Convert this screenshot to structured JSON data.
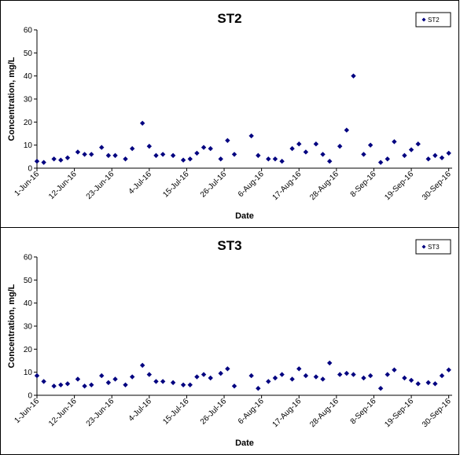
{
  "chart_data": [
    {
      "type": "scatter",
      "title": "ST2",
      "xlabel": "Date",
      "ylabel": "Concentration, mg/L",
      "ylim": [
        0,
        60
      ],
      "yticks": [
        "0",
        "10",
        "20",
        "30",
        "40",
        "50",
        "60"
      ],
      "xlim": [
        "2016-06-01",
        "2016-10-01"
      ],
      "xticks": [
        "1-Jun-16",
        "12-Jun-16",
        "23-Jun-16",
        "4-Jul-16",
        "15-Jul-16",
        "26-Jul-16",
        "6-Aug-16",
        "17-Aug-16",
        "28-Aug-16",
        "8-Sep-16",
        "19-Sep-16",
        "30-Sep-16"
      ],
      "grid": false,
      "legend": {
        "position": "top-right",
        "entries": [
          "ST2"
        ]
      },
      "series": [
        {
          "name": "ST2",
          "color": "#000080",
          "x": [
            "2016-06-01",
            "2016-06-03",
            "2016-06-06",
            "2016-06-08",
            "2016-06-10",
            "2016-06-13",
            "2016-06-15",
            "2016-06-17",
            "2016-06-20",
            "2016-06-22",
            "2016-06-24",
            "2016-06-27",
            "2016-06-29",
            "2016-07-02",
            "2016-07-04",
            "2016-07-06",
            "2016-07-08",
            "2016-07-11",
            "2016-07-14",
            "2016-07-16",
            "2016-07-18",
            "2016-07-20",
            "2016-07-22",
            "2016-07-25",
            "2016-07-27",
            "2016-07-29",
            "2016-08-03",
            "2016-08-05",
            "2016-08-08",
            "2016-08-10",
            "2016-08-12",
            "2016-08-15",
            "2016-08-17",
            "2016-08-19",
            "2016-08-22",
            "2016-08-24",
            "2016-08-26",
            "2016-08-29",
            "2016-08-31",
            "2016-09-02",
            "2016-09-05",
            "2016-09-07",
            "2016-09-10",
            "2016-09-12",
            "2016-09-14",
            "2016-09-17",
            "2016-09-19",
            "2016-09-21",
            "2016-09-24",
            "2016-09-26",
            "2016-09-28",
            "2016-09-30"
          ],
          "y": [
            3,
            2.5,
            4,
            3.5,
            4.5,
            7,
            6,
            6,
            9,
            5.5,
            5.5,
            4,
            8.5,
            19.5,
            9.5,
            5.5,
            6,
            5.5,
            3.5,
            4,
            6.5,
            9,
            8.5,
            4,
            12,
            6,
            14,
            5.5,
            4,
            4,
            3,
            8.5,
            10.5,
            7,
            10.5,
            6,
            3,
            9.5,
            16.5,
            40,
            6,
            10,
            2.5,
            4,
            11.5,
            5.5,
            8,
            10.5,
            4,
            5.5,
            4.5,
            6.5
          ]
        }
      ]
    },
    {
      "type": "scatter",
      "title": "ST3",
      "xlabel": "Date",
      "ylabel": "Concentration, mg/L",
      "ylim": [
        0,
        60
      ],
      "yticks": [
        "0",
        "10",
        "20",
        "30",
        "40",
        "50",
        "60"
      ],
      "xlim": [
        "2016-06-01",
        "2016-10-01"
      ],
      "xticks": [
        "1-Jun-16",
        "12-Jun-16",
        "23-Jun-16",
        "4-Jul-16",
        "15-Jul-16",
        "26-Jul-16",
        "6-Aug-16",
        "17-Aug-16",
        "28-Aug-16",
        "8-Sep-16",
        "19-Sep-16",
        "30-Sep-16"
      ],
      "grid": false,
      "legend": {
        "position": "top-right",
        "entries": [
          "ST3"
        ]
      },
      "series": [
        {
          "name": "ST3",
          "color": "#000080",
          "x": [
            "2016-06-01",
            "2016-06-03",
            "2016-06-06",
            "2016-06-08",
            "2016-06-10",
            "2016-06-13",
            "2016-06-15",
            "2016-06-17",
            "2016-06-20",
            "2016-06-22",
            "2016-06-24",
            "2016-06-27",
            "2016-06-29",
            "2016-07-02",
            "2016-07-04",
            "2016-07-06",
            "2016-07-08",
            "2016-07-11",
            "2016-07-14",
            "2016-07-16",
            "2016-07-18",
            "2016-07-20",
            "2016-07-22",
            "2016-07-25",
            "2016-07-27",
            "2016-07-29",
            "2016-08-03",
            "2016-08-05",
            "2016-08-08",
            "2016-08-10",
            "2016-08-12",
            "2016-08-15",
            "2016-08-17",
            "2016-08-19",
            "2016-08-22",
            "2016-08-24",
            "2016-08-26",
            "2016-08-29",
            "2016-08-31",
            "2016-09-02",
            "2016-09-05",
            "2016-09-07",
            "2016-09-10",
            "2016-09-12",
            "2016-09-14",
            "2016-09-17",
            "2016-09-19",
            "2016-09-21",
            "2016-09-24",
            "2016-09-26",
            "2016-09-28",
            "2016-09-30"
          ],
          "y": [
            8.5,
            6,
            4,
            4.5,
            5,
            7,
            4,
            4.5,
            8.5,
            5.5,
            7,
            4.5,
            8,
            13,
            9,
            6,
            6,
            5.5,
            4.5,
            4.5,
            8,
            9,
            7.5,
            9.5,
            11.5,
            4,
            8.5,
            3,
            6,
            7.5,
            9,
            7,
            11.5,
            8.5,
            8,
            7,
            14,
            9,
            9.5,
            9,
            7.5,
            8.5,
            3,
            9,
            11,
            7.5,
            6.5,
            5,
            5.5,
            5,
            8.5,
            11
          ]
        }
      ]
    }
  ]
}
